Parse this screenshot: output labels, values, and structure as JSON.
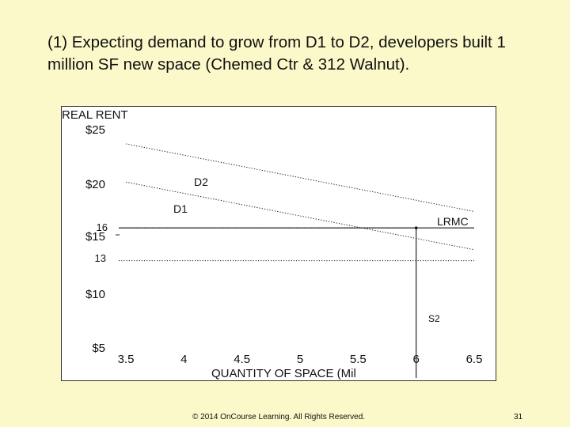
{
  "slide": {
    "title": "(1) Expecting demand to grow from D1 to D2, developers built 1 million SF new space (Chemed Ctr & 312 Walnut).",
    "footer": "© 2014 OnCourse Learning. All Rights Reserved.",
    "page_number": "31"
  },
  "chart_data": {
    "type": "line",
    "ylabel": "REAL RENT",
    "xlabel": "QUANTITY OF SPACE (Mil",
    "xlim": [
      3.5,
      6.5
    ],
    "ylim": [
      5,
      25
    ],
    "x_ticks": [
      3.5,
      4,
      4.5,
      5,
      5.5,
      6,
      6.5
    ],
    "x_tick_labels": [
      "3.5",
      "4",
      "4.5",
      "5",
      "5.5",
      "6",
      "6.5"
    ],
    "y_ticks": [
      25,
      20,
      15,
      10,
      5
    ],
    "y_tick_labels": [
      "$25",
      "$20",
      "$15",
      "$10",
      "$5"
    ],
    "grid": false,
    "series": [
      {
        "name": "D2",
        "style": "dotted",
        "x": [
          3.5,
          6.5
        ],
        "y": [
          23.7,
          17.5
        ]
      },
      {
        "name": "D1",
        "style": "dotted",
        "x": [
          3.5,
          6.5
        ],
        "y": [
          20.2,
          14.0
        ]
      },
      {
        "name": "LRMC",
        "style": "solid",
        "x": [
          3.5,
          6.5
        ],
        "y": [
          16,
          16
        ]
      },
      {
        "name": "S2",
        "style": "solid",
        "x": [
          6.0,
          6.0
        ],
        "y": [
          5,
          16
        ]
      }
    ],
    "reference_lines": [
      {
        "label": "16",
        "y": 16,
        "style": "dotted",
        "x_end": 6.0
      },
      {
        "label": "13",
        "y": 13,
        "style": "dotted",
        "x_end": 6.5
      }
    ]
  }
}
